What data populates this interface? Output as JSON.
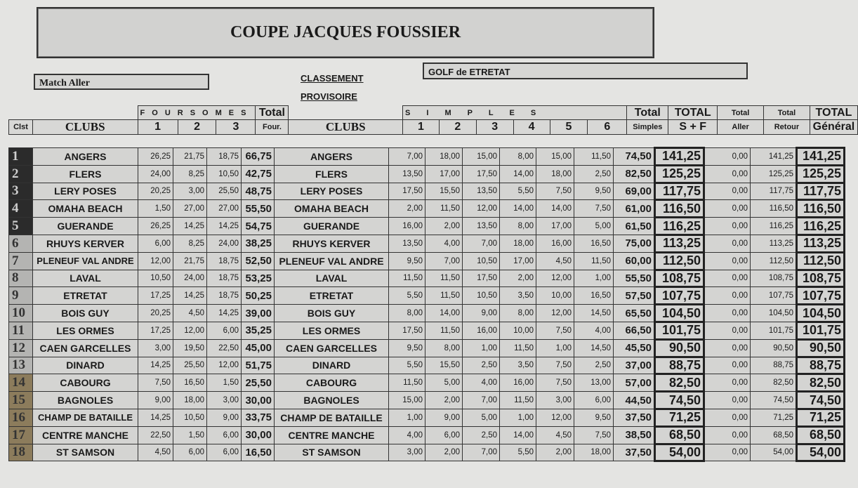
{
  "title": "COUPE JACQUES FOUSSIER",
  "match_label": "Match Aller",
  "classement": [
    "CLASSEMENT",
    "PROVISOIRE"
  ],
  "golf": "GOLF de ETRETAT",
  "headers": {
    "clst": "Clst",
    "clubs": "CLUBS",
    "foursomes": "FOURSOMES",
    "f_cols": [
      "1",
      "2",
      "3"
    ],
    "total_four": [
      "Total",
      "Four."
    ],
    "simples": "S I M P L E S",
    "s_cols": [
      "1",
      "2",
      "3",
      "4",
      "5",
      "6"
    ],
    "total_simples": [
      "Total",
      "Simples"
    ],
    "total_sf": [
      "TOTAL",
      "S + F"
    ],
    "total_aller": [
      "Total",
      "Aller"
    ],
    "total_retour": [
      "Total",
      "Retour"
    ],
    "total_general": [
      "TOTAL",
      "Général"
    ]
  },
  "rank_colors": {
    "top": "#2b2b2b",
    "mid": "#b4b4b2",
    "low": "#8c7c5c"
  },
  "rows": [
    [
      "1",
      "ANGERS",
      "26,25",
      "21,75",
      "18,75",
      "66,75",
      "7,00",
      "18,00",
      "15,00",
      "8,00",
      "15,00",
      "11,50",
      "74,50",
      "141,25",
      "0,00",
      "141,25",
      "141,25"
    ],
    [
      "2",
      "FLERS",
      "24,00",
      "8,25",
      "10,50",
      "42,75",
      "13,50",
      "17,00",
      "17,50",
      "14,00",
      "18,00",
      "2,50",
      "82,50",
      "125,25",
      "0,00",
      "125,25",
      "125,25"
    ],
    [
      "3",
      "LERY POSES",
      "20,25",
      "3,00",
      "25,50",
      "48,75",
      "17,50",
      "15,50",
      "13,50",
      "5,50",
      "7,50",
      "9,50",
      "69,00",
      "117,75",
      "0,00",
      "117,75",
      "117,75"
    ],
    [
      "4",
      "OMAHA BEACH",
      "1,50",
      "27,00",
      "27,00",
      "55,50",
      "2,00",
      "11,50",
      "12,00",
      "14,00",
      "14,00",
      "7,50",
      "61,00",
      "116,50",
      "0,00",
      "116,50",
      "116,50"
    ],
    [
      "5",
      "GUERANDE",
      "26,25",
      "14,25",
      "14,25",
      "54,75",
      "16,00",
      "2,00",
      "13,50",
      "8,00",
      "17,00",
      "5,00",
      "61,50",
      "116,25",
      "0,00",
      "116,25",
      "116,25"
    ],
    [
      "6",
      "RHUYS KERVER",
      "6,00",
      "8,25",
      "24,00",
      "38,25",
      "13,50",
      "4,00",
      "7,00",
      "18,00",
      "16,00",
      "16,50",
      "75,00",
      "113,25",
      "0,00",
      "113,25",
      "113,25"
    ],
    [
      "7",
      "PLENEUF VAL ANDRE",
      "12,00",
      "21,75",
      "18,75",
      "52,50",
      "9,50",
      "7,00",
      "10,50",
      "17,00",
      "4,50",
      "11,50",
      "60,00",
      "112,50",
      "0,00",
      "112,50",
      "112,50"
    ],
    [
      "8",
      "LAVAL",
      "10,50",
      "24,00",
      "18,75",
      "53,25",
      "11,50",
      "11,50",
      "17,50",
      "2,00",
      "12,00",
      "1,00",
      "55,50",
      "108,75",
      "0,00",
      "108,75",
      "108,75"
    ],
    [
      "9",
      "ETRETAT",
      "17,25",
      "14,25",
      "18,75",
      "50,25",
      "5,50",
      "11,50",
      "10,50",
      "3,50",
      "10,00",
      "16,50",
      "57,50",
      "107,75",
      "0,00",
      "107,75",
      "107,75"
    ],
    [
      "10",
      "BOIS GUY",
      "20,25",
      "4,50",
      "14,25",
      "39,00",
      "8,00",
      "14,00",
      "9,00",
      "8,00",
      "12,00",
      "14,50",
      "65,50",
      "104,50",
      "0,00",
      "104,50",
      "104,50"
    ],
    [
      "11",
      "LES ORMES",
      "17,25",
      "12,00",
      "6,00",
      "35,25",
      "17,50",
      "11,50",
      "16,00",
      "10,00",
      "7,50",
      "4,00",
      "66,50",
      "101,75",
      "0,00",
      "101,75",
      "101,75"
    ],
    [
      "12",
      "CAEN GARCELLES",
      "3,00",
      "19,50",
      "22,50",
      "45,00",
      "9,50",
      "8,00",
      "1,00",
      "11,50",
      "1,00",
      "14,50",
      "45,50",
      "90,50",
      "0,00",
      "90,50",
      "90,50"
    ],
    [
      "13",
      "DINARD",
      "14,25",
      "25,50",
      "12,00",
      "51,75",
      "5,50",
      "15,50",
      "2,50",
      "3,50",
      "7,50",
      "2,50",
      "37,00",
      "88,75",
      "0,00",
      "88,75",
      "88,75"
    ],
    [
      "14",
      "CABOURG",
      "7,50",
      "16,50",
      "1,50",
      "25,50",
      "11,50",
      "5,00",
      "4,00",
      "16,00",
      "7,50",
      "13,00",
      "57,00",
      "82,50",
      "0,00",
      "82,50",
      "82,50"
    ],
    [
      "15",
      "BAGNOLES",
      "9,00",
      "18,00",
      "3,00",
      "30,00",
      "15,00",
      "2,00",
      "7,00",
      "11,50",
      "3,00",
      "6,00",
      "44,50",
      "74,50",
      "0,00",
      "74,50",
      "74,50"
    ],
    [
      "16",
      "CHAMP DE BATAILLE",
      "14,25",
      "10,50",
      "9,00",
      "33,75",
      "1,00",
      "9,00",
      "5,00",
      "1,00",
      "12,00",
      "9,50",
      "37,50",
      "71,25",
      "0,00",
      "71,25",
      "71,25"
    ],
    [
      "17",
      "CENTRE MANCHE",
      "22,50",
      "1,50",
      "6,00",
      "30,00",
      "4,00",
      "6,00",
      "2,50",
      "14,00",
      "4,50",
      "7,50",
      "38,50",
      "68,50",
      "0,00",
      "68,50",
      "68,50"
    ],
    [
      "18",
      "ST SAMSON",
      "4,50",
      "6,00",
      "6,00",
      "16,50",
      "3,00",
      "2,00",
      "7,00",
      "5,50",
      "2,00",
      "18,00",
      "37,50",
      "54,00",
      "0,00",
      "54,00",
      "54,00"
    ]
  ]
}
